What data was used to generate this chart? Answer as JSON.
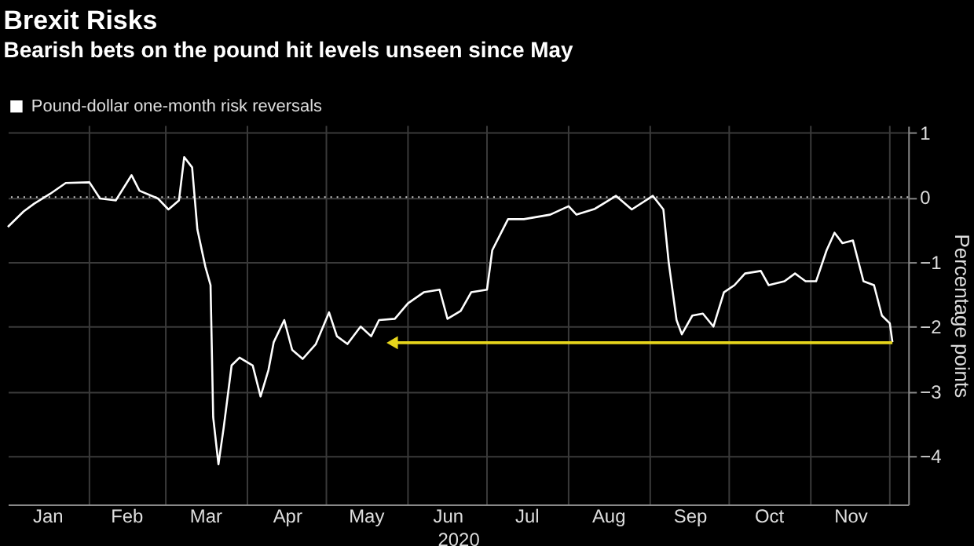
{
  "chart_data": {
    "type": "line",
    "title": "Brexit Risks",
    "subtitle": "Bearish bets on the pound hit levels unseen since May",
    "xlabel": "2020",
    "ylabel": "Percentage points",
    "xlim": [
      "2020-01-01",
      "2020-12-08"
    ],
    "ylim": [
      -4.75,
      1.1
    ],
    "yticks": [
      -4,
      -3,
      -2,
      -1,
      0,
      1
    ],
    "xticks": [
      {
        "value": "2020-02-01",
        "label": null
      },
      {
        "value": "2020-03-01",
        "label": null
      },
      {
        "value": "2020-04-01",
        "label": null
      },
      {
        "value": "2020-05-01",
        "label": null
      },
      {
        "value": "2020-06-01",
        "label": null
      },
      {
        "value": "2020-07-01",
        "label": null
      },
      {
        "value": "2020-08-01",
        "label": null
      },
      {
        "value": "2020-09-01",
        "label": null
      },
      {
        "value": "2020-10-01",
        "label": null
      },
      {
        "value": "2020-11-01",
        "label": null
      },
      {
        "value": "2020-12-01",
        "label": null
      },
      {
        "value": "2020-01-16",
        "label": "Jan"
      },
      {
        "value": "2020-02-15",
        "label": "Feb"
      },
      {
        "value": "2020-03-16",
        "label": "Mar"
      },
      {
        "value": "2020-04-16",
        "label": "Apr"
      },
      {
        "value": "2020-05-16",
        "label": "May"
      },
      {
        "value": "2020-06-16",
        "label": "Jun"
      },
      {
        "value": "2020-07-16",
        "label": "Jul"
      },
      {
        "value": "2020-08-16",
        "label": "Aug"
      },
      {
        "value": "2020-09-16",
        "label": "Sep"
      },
      {
        "value": "2020-10-16",
        "label": "Oct"
      },
      {
        "value": "2020-11-16",
        "label": "Nov"
      }
    ],
    "grid": true,
    "legend": "top left",
    "ref_lines": [
      {
        "axis": "y",
        "value": 0,
        "color": "#cccccc",
        "line_style": "dotted"
      }
    ],
    "series": [
      {
        "name": "Pound-dollar one-month risk reversals",
        "color": "#ffffff",
        "x": [
          "2020-01-01",
          "2020-01-07",
          "2020-01-11",
          "2020-01-17",
          "2020-01-23",
          "2020-02-01",
          "2020-02-05",
          "2020-02-11",
          "2020-02-17",
          "2020-02-20",
          "2020-02-27",
          "2020-03-02",
          "2020-03-06",
          "2020-03-08",
          "2020-03-11",
          "2020-03-13",
          "2020-03-16",
          "2020-03-18",
          "2020-03-19",
          "2020-03-21",
          "2020-03-23",
          "2020-03-26",
          "2020-03-29",
          "2020-04-03",
          "2020-04-06",
          "2020-04-09",
          "2020-04-11",
          "2020-04-15",
          "2020-04-18",
          "2020-04-22",
          "2020-04-27",
          "2020-05-02",
          "2020-05-05",
          "2020-05-09",
          "2020-05-14",
          "2020-05-18",
          "2020-05-21",
          "2020-05-27",
          "2020-06-01",
          "2020-06-07",
          "2020-06-13",
          "2020-06-16",
          "2020-06-21",
          "2020-06-25",
          "2020-07-01",
          "2020-07-03",
          "2020-07-06",
          "2020-07-09",
          "2020-07-15",
          "2020-07-25",
          "2020-08-01",
          "2020-08-04",
          "2020-08-11",
          "2020-08-19",
          "2020-08-25",
          "2020-09-02",
          "2020-09-06",
          "2020-09-08",
          "2020-09-11",
          "2020-09-13",
          "2020-09-17",
          "2020-09-21",
          "2020-09-25",
          "2020-09-29",
          "2020-10-03",
          "2020-10-07",
          "2020-10-13",
          "2020-10-16",
          "2020-10-22",
          "2020-10-26",
          "2020-10-30",
          "2020-11-03",
          "2020-11-07",
          "2020-11-10",
          "2020-11-13",
          "2020-11-17",
          "2020-11-21",
          "2020-11-25",
          "2020-11-28",
          "2020-12-01",
          "2020-12-02"
        ],
        "values": [
          -0.46,
          -0.22,
          -0.1,
          0.05,
          0.22,
          0.23,
          -0.02,
          -0.05,
          0.34,
          0.1,
          -0.02,
          -0.19,
          -0.05,
          0.62,
          0.46,
          -0.5,
          -1.07,
          -1.36,
          -3.4,
          -4.13,
          -3.56,
          -2.6,
          -2.48,
          -2.6,
          -3.08,
          -2.67,
          -2.24,
          -1.9,
          -2.36,
          -2.5,
          -2.27,
          -1.78,
          -2.15,
          -2.27,
          -2.0,
          -2.15,
          -1.9,
          -1.88,
          -1.64,
          -1.47,
          -1.43,
          -1.88,
          -1.76,
          -1.47,
          -1.43,
          -0.82,
          -0.58,
          -0.34,
          -0.34,
          -0.27,
          -0.14,
          -0.27,
          -0.18,
          0.02,
          -0.19,
          0.02,
          -0.19,
          -1.0,
          -1.9,
          -2.12,
          -1.83,
          -1.8,
          -2.0,
          -1.47,
          -1.36,
          -1.18,
          -1.14,
          -1.36,
          -1.3,
          -1.18,
          -1.3,
          -1.3,
          -0.82,
          -0.55,
          -0.71,
          -0.67,
          -1.3,
          -1.36,
          -1.83,
          -1.95,
          -2.24
        ]
      },
      {
        "color": "#e6d51c",
        "x": [
          "2020-05-26",
          "2020-12-02"
        ],
        "values": [
          -2.25,
          -2.25
        ]
      }
    ]
  }
}
